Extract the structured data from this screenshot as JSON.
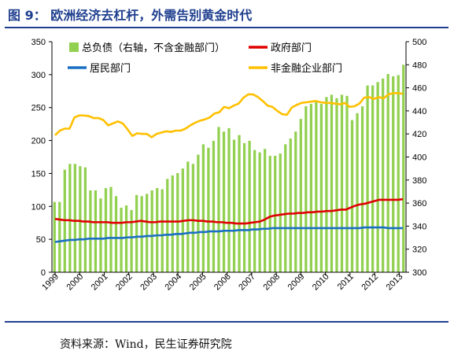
{
  "header": {
    "title": "图 9：  欧洲经济去杠杆，外需告别黄金时代"
  },
  "footer": {
    "source": "资料来源：Wind，民生证券研究院"
  },
  "colors": {
    "title": "#1f3f8f",
    "total_debt": "#92d050",
    "government": "#e00000",
    "household": "#1a6fc4",
    "non_financial_corp": "#ffc000"
  },
  "chart_data": {
    "type": "bar+line",
    "title": "",
    "x_ticks": [
      "1999",
      "2000",
      "2001",
      "2002",
      "2003",
      "2004",
      "2005",
      "2006",
      "2007",
      "2008",
      "2009",
      "2010",
      "2011",
      "2012",
      "2013"
    ],
    "y_left": {
      "min": 0,
      "max": 350,
      "ticks": [
        0,
        50,
        100,
        150,
        200,
        250,
        300,
        350
      ]
    },
    "y_right": {
      "min": 300,
      "max": 500,
      "ticks": [
        300,
        320,
        340,
        360,
        380,
        400,
        420,
        440,
        460,
        480,
        500
      ]
    },
    "grid": false,
    "legend_position": "top",
    "bars": {
      "name": "总负债（右轴，不含金融部门）",
      "axis": "right",
      "values": [
        361,
        361,
        389,
        394,
        394,
        392,
        391,
        371,
        371,
        364,
        373,
        374,
        366,
        356,
        358,
        354,
        367,
        366,
        368,
        371,
        373,
        372,
        381,
        384,
        386,
        390,
        396,
        394,
        402,
        411,
        408,
        414,
        426,
        422,
        425,
        415,
        419,
        412,
        414,
        406,
        404,
        407,
        401,
        401,
        403,
        411,
        416,
        422,
        433,
        444,
        446,
        449,
        446,
        452,
        454,
        451,
        454,
        453,
        432,
        438,
        444,
        462,
        462,
        465,
        468,
        472,
        470,
        471,
        480
      ]
    },
    "series": [
      {
        "name": "政府部门",
        "axis": "left",
        "values": [
          81,
          80,
          79,
          79,
          78,
          78,
          77,
          77,
          76,
          76,
          76,
          76,
          75,
          75,
          75,
          76,
          76,
          77,
          78,
          77,
          76,
          76,
          77,
          77,
          77,
          77,
          77,
          78,
          79,
          79,
          78,
          78,
          77,
          77,
          76,
          76,
          75,
          75,
          74,
          74,
          74,
          75,
          76,
          77,
          80,
          84,
          86,
          87,
          88,
          89,
          89,
          90,
          90,
          91,
          91,
          92,
          92,
          93,
          93,
          94,
          95,
          95,
          98,
          101,
          103,
          104,
          106,
          108,
          110,
          110,
          110,
          110,
          110,
          111
        ]
      },
      {
        "name": "居民部门",
        "axis": "left",
        "values": [
          46,
          47,
          48,
          49,
          49,
          50,
          50,
          51,
          51,
          51,
          51,
          52,
          52,
          52,
          52,
          53,
          53,
          54,
          54,
          55,
          55,
          56,
          56,
          57,
          57,
          58,
          58,
          59,
          60,
          60,
          61,
          61,
          62,
          62,
          62,
          63,
          63,
          63,
          64,
          64,
          64,
          65,
          65,
          66,
          66,
          67,
          67,
          67,
          67,
          67,
          67,
          67,
          67,
          67,
          67,
          67,
          67,
          67,
          67,
          67,
          67,
          67,
          67,
          67,
          68,
          68,
          68,
          68,
          68,
          67,
          67,
          67,
          67
        ]
      },
      {
        "name": "非金融企业部门",
        "axis": "left",
        "values": [
          208,
          215,
          218,
          218,
          235,
          238,
          238,
          237,
          234,
          234,
          231,
          223,
          226,
          229,
          226,
          217,
          207,
          211,
          210,
          210,
          205,
          210,
          212,
          214,
          213,
          215,
          215,
          218,
          223,
          227,
          230,
          232,
          235,
          241,
          243,
          251,
          249,
          253,
          256,
          265,
          270,
          270,
          266,
          260,
          253,
          251,
          245,
          240,
          239,
          250,
          254,
          257,
          258,
          259,
          260,
          258,
          257,
          257,
          256,
          255,
          257,
          251,
          252,
          256,
          265,
          266,
          263,
          266,
          264,
          270,
          272,
          272,
          271
        ]
      }
    ]
  }
}
